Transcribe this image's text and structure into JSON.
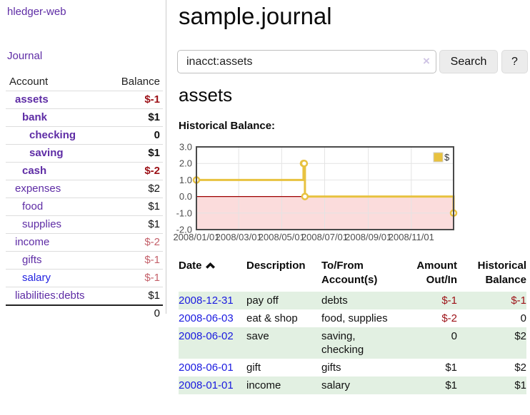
{
  "sidebar": {
    "brand": "hledger-web",
    "nav": {
      "journal_label": "Journal"
    },
    "accounts_table": {
      "account_header": "Account",
      "balance_header": "Balance",
      "rows": [
        {
          "name": "assets",
          "level": 1,
          "bold": true,
          "color": "purple",
          "balance": "$-1",
          "balance_class": "neg-dark"
        },
        {
          "name": "bank",
          "level": 2,
          "bold": true,
          "color": "purple",
          "balance": "$1",
          "balance_class": ""
        },
        {
          "name": "checking",
          "level": 3,
          "bold": true,
          "color": "purple",
          "balance": "0",
          "balance_class": ""
        },
        {
          "name": "saving",
          "level": 3,
          "bold": true,
          "color": "purple",
          "balance": "$1",
          "balance_class": ""
        },
        {
          "name": "cash",
          "level": 2,
          "bold": true,
          "color": "purple",
          "balance": "$-2",
          "balance_class": "neg-dark"
        },
        {
          "name": "expenses",
          "level": 1,
          "bold": false,
          "color": "purple",
          "balance": "$2",
          "balance_class": ""
        },
        {
          "name": "food",
          "level": 2,
          "bold": false,
          "color": "purple",
          "balance": "$1",
          "balance_class": ""
        },
        {
          "name": "supplies",
          "level": 2,
          "bold": false,
          "color": "purple",
          "balance": "$1",
          "balance_class": ""
        },
        {
          "name": "income",
          "level": 1,
          "bold": false,
          "color": "purple",
          "balance": "$-2",
          "balance_class": "neg-light"
        },
        {
          "name": "gifts",
          "level": 2,
          "bold": false,
          "color": "purple",
          "balance": "$-1",
          "balance_class": "neg-light"
        },
        {
          "name": "salary",
          "level": 2,
          "bold": false,
          "color": "blue",
          "balance": "$-1",
          "balance_class": "neg-light"
        },
        {
          "name": "liabilities:debts",
          "level": 1,
          "bold": false,
          "color": "purple",
          "balance": "$1",
          "balance_class": ""
        }
      ],
      "total": "0"
    }
  },
  "header": {
    "title": "sample.journal"
  },
  "search": {
    "query": "inacct:assets",
    "clear_icon": "×",
    "search_label": "Search",
    "help_label": "?"
  },
  "account_page": {
    "heading": "assets",
    "chart_heading": "Historical Balance:"
  },
  "chart_data": {
    "type": "line",
    "style": "step-after",
    "title": "Historical Balance",
    "series": [
      {
        "name": "$",
        "points": [
          [
            "2008-01-01",
            1
          ],
          [
            "2008-06-01",
            2
          ],
          [
            "2008-06-02",
            2
          ],
          [
            "2008-06-03",
            0
          ],
          [
            "2008-12-31",
            -1
          ]
        ]
      }
    ],
    "x_range": [
      "2008-01-01",
      "2008-12-31"
    ],
    "ylim": [
      -2,
      3
    ],
    "ytick_values": [
      3,
      2,
      1,
      0,
      -1,
      -2
    ],
    "ytick_labels": [
      "3.0",
      "2.0",
      "1.0",
      "0.0",
      "-1.0",
      "-2.0"
    ],
    "xticks": [
      {
        "label": "2008/01/01",
        "date": "2008-01-01"
      },
      {
        "label": "2008/03/01",
        "date": "2008-03-01"
      },
      {
        "label": "2008/05/01",
        "date": "2008-05-01"
      },
      {
        "label": "2008/07/01",
        "date": "2008-07-01"
      },
      {
        "label": "2008/09/01",
        "date": "2008-09-01"
      },
      {
        "label": "2008/11/01",
        "date": "2008-11-01"
      }
    ],
    "legend": {
      "label": "$",
      "position": "top-right"
    },
    "grid": true,
    "colors": {
      "line": "#E8C240",
      "marker_fill": "#ffffff",
      "negative_fill": "#FBDCDC",
      "zero_line": "#9D0000",
      "grid": "#e4e4e4",
      "border": "#4a4a4a"
    }
  },
  "register": {
    "columns": [
      {
        "label": "Date",
        "sorted": "ascending"
      },
      {
        "label": "Description"
      },
      {
        "label": "To/From Account(s)"
      },
      {
        "label": "Amount Out/In",
        "align": "right"
      },
      {
        "label": "Historical Balance",
        "align": "right"
      }
    ],
    "rows": [
      {
        "date": "2008-12-31",
        "description": "pay off",
        "accounts": "debts",
        "amount": "$-1",
        "amount_negative": true,
        "balance": "$-1",
        "balance_negative": true
      },
      {
        "date": "2008-06-03",
        "description": "eat & shop",
        "accounts": "food, supplies",
        "amount": "$-2",
        "amount_negative": true,
        "balance": "0",
        "balance_negative": false
      },
      {
        "date": "2008-06-02",
        "description": "save",
        "accounts": "saving, checking",
        "amount": "0",
        "amount_negative": false,
        "balance": "$2",
        "balance_negative": false
      },
      {
        "date": "2008-06-01",
        "description": "gift",
        "accounts": "gifts",
        "amount": "$1",
        "amount_negative": false,
        "balance": "$2",
        "balance_negative": false
      },
      {
        "date": "2008-01-01",
        "description": "income",
        "accounts": "salary",
        "amount": "$1",
        "amount_negative": false,
        "balance": "$1",
        "balance_negative": false
      }
    ]
  }
}
